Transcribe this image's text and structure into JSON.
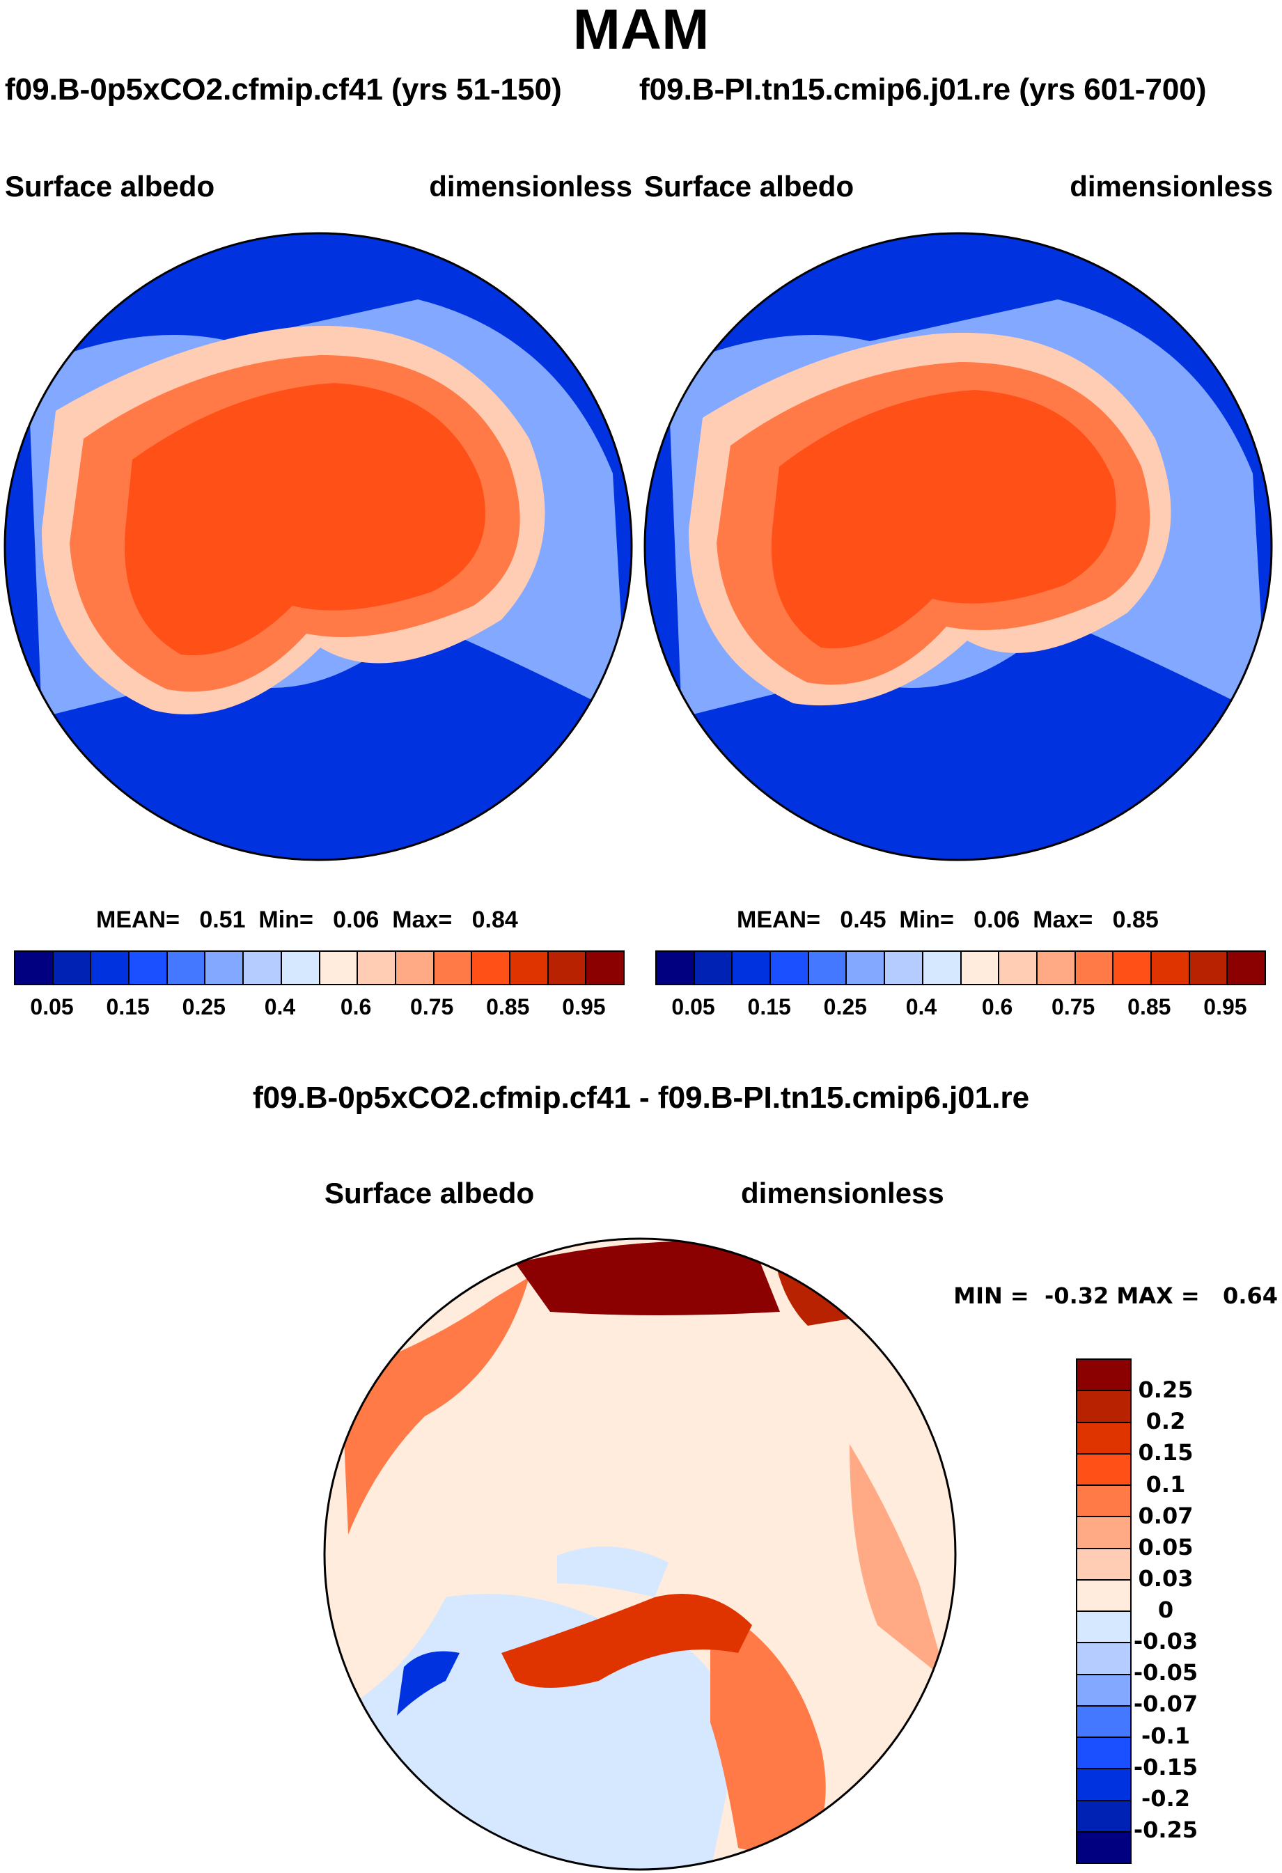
{
  "title": "MAM",
  "panels": [
    {
      "run": "f09.B-0p5xCO2.cfmip.cf41 (yrs 51-150)",
      "variable": "Surface albedo",
      "units": "dimensionless",
      "mean_label": "MEAN=",
      "mean": "0.51",
      "min_label": "Min=",
      "min": "0.06",
      "max_label": "Max=",
      "max": "0.84"
    },
    {
      "run": "f09.B-PI.tn15.cmip6.j01.re (yrs 601-700)",
      "variable": "Surface albedo",
      "units": "dimensionless",
      "mean_label": "MEAN=",
      "mean": "0.45",
      "min_label": "Min=",
      "min": "0.06",
      "max_label": "Max=",
      "max": "0.85"
    }
  ],
  "diff": {
    "title": "f09.B-0p5xCO2.cfmip.cf41 - f09.B-PI.tn15.cmip6.j01.re",
    "variable": "Surface albedo",
    "units": "dimensionless",
    "minmax": "MIN =  -0.32 MAX =   0.64"
  },
  "chart_data": [
    {
      "type": "heatmap",
      "title": "f09.B-0p5xCO2.cfmip.cf41 (yrs 51-150)",
      "subtitle": "Surface albedo",
      "units": "dimensionless",
      "projection": "north-polar-stereographic",
      "levels": [
        0.05,
        0.1,
        0.15,
        0.2,
        0.25,
        0.3,
        0.4,
        0.5,
        0.6,
        0.7,
        0.75,
        0.8,
        0.85,
        0.9,
        0.95
      ],
      "tick_labels": [
        "0.05",
        "0.15",
        "0.25",
        "0.4",
        "0.6",
        "0.75",
        "0.85",
        "0.95"
      ],
      "stats": {
        "mean": 0.51,
        "min": 0.06,
        "max": 0.84
      }
    },
    {
      "type": "heatmap",
      "title": "f09.B-PI.tn15.cmip6.j01.re (yrs 601-700)",
      "subtitle": "Surface albedo",
      "units": "dimensionless",
      "projection": "north-polar-stereographic",
      "levels": [
        0.05,
        0.1,
        0.15,
        0.2,
        0.25,
        0.3,
        0.4,
        0.5,
        0.6,
        0.7,
        0.75,
        0.8,
        0.85,
        0.9,
        0.95
      ],
      "tick_labels": [
        "0.05",
        "0.15",
        "0.25",
        "0.4",
        "0.6",
        "0.75",
        "0.85",
        "0.95"
      ],
      "stats": {
        "mean": 0.45,
        "min": 0.06,
        "max": 0.85
      }
    },
    {
      "type": "heatmap",
      "title": "f09.B-0p5xCO2.cfmip.cf41 - f09.B-PI.tn15.cmip6.j01.re",
      "subtitle": "Surface albedo",
      "units": "dimensionless",
      "projection": "north-polar-stereographic",
      "levels": [
        -0.25,
        -0.2,
        -0.15,
        -0.1,
        -0.07,
        -0.05,
        -0.03,
        0,
        0.03,
        0.05,
        0.07,
        0.1,
        0.15,
        0.2,
        0.25
      ],
      "tick_labels": [
        "0.25",
        "0.2",
        "0.15",
        "0.1",
        "0.07",
        "0.05",
        "0.03",
        "0",
        "-0.03",
        "-0.05",
        "-0.07",
        "-0.1",
        "-0.15",
        "-0.2",
        "-0.25"
      ],
      "stats": {
        "min": -0.32,
        "max": 0.64
      }
    }
  ],
  "colors": [
    "#000080",
    "#0022b4",
    "#0032e0",
    "#1a50ff",
    "#4478ff",
    "#82a8ff",
    "#b4ccff",
    "#d6e8ff",
    "#ffecdc",
    "#ffccb4",
    "#ffaa84",
    "#ff7a46",
    "#ff5018",
    "#e03400",
    "#b82200",
    "#8b0000"
  ]
}
